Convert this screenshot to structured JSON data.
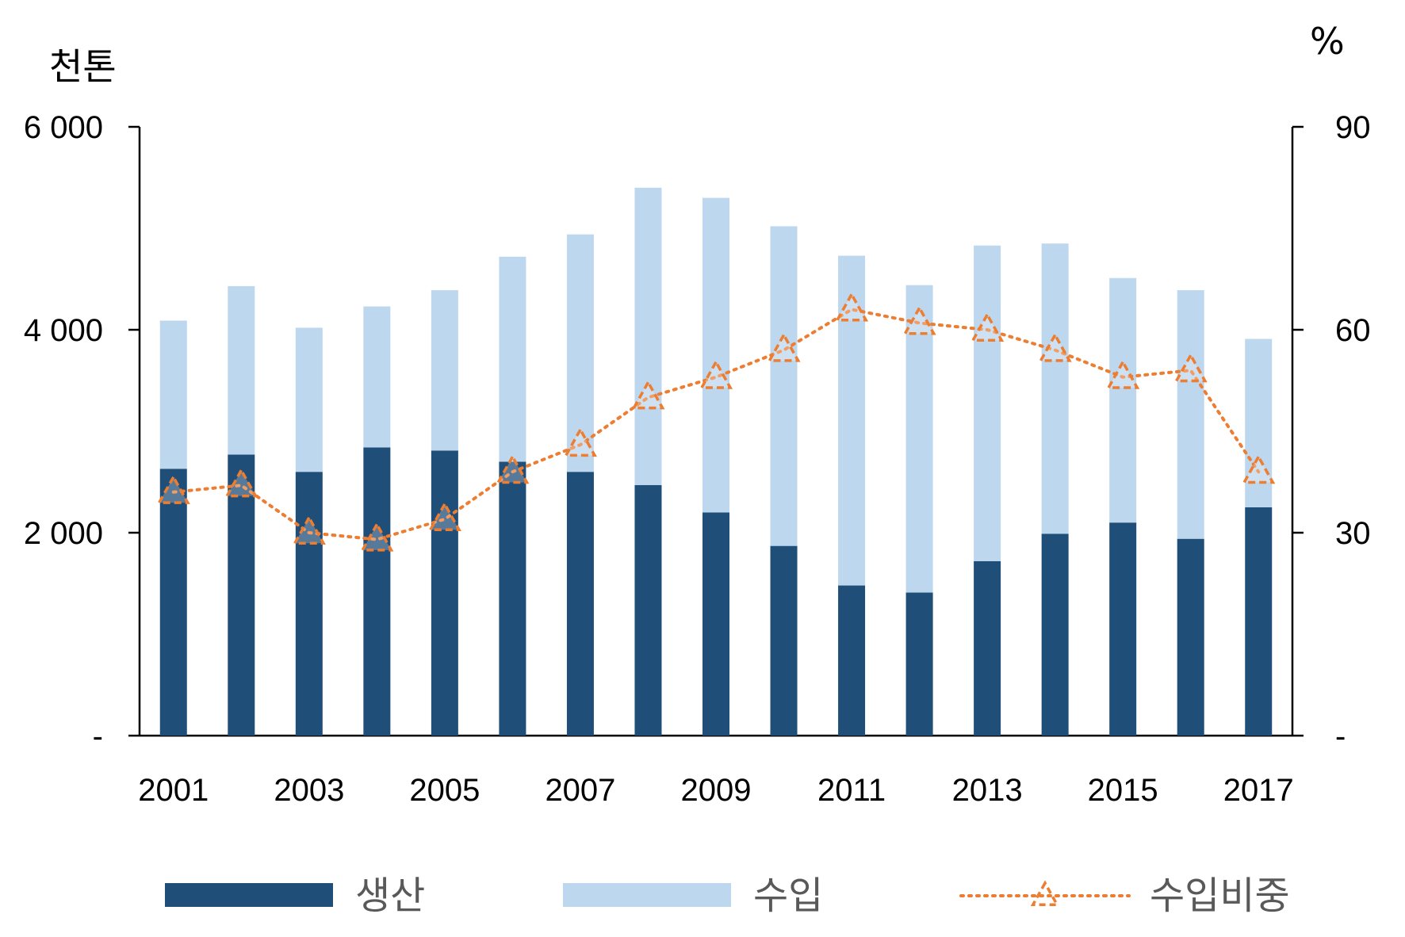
{
  "chart_data": {
    "type": "bar",
    "stacked": true,
    "categories": [
      "2001",
      "2002",
      "2003",
      "2004",
      "2005",
      "2006",
      "2007",
      "2008",
      "2009",
      "2010",
      "2011",
      "2012",
      "2013",
      "2014",
      "2015",
      "2016",
      "2017"
    ],
    "x_tick_labels": [
      "2001",
      "2003",
      "2005",
      "2007",
      "2009",
      "2011",
      "2013",
      "2015",
      "2017"
    ],
    "left_axis": {
      "unit": "천톤",
      "ylim": [
        0,
        6000
      ],
      "ticks": [
        0,
        2000,
        4000,
        6000
      ],
      "tick_labels": [
        "-",
        "2 000",
        "4 000",
        "6 000"
      ]
    },
    "right_axis": {
      "unit": "%",
      "ylim": [
        0,
        90
      ],
      "ticks": [
        0,
        30,
        60,
        90
      ],
      "tick_labels": [
        "-",
        "30",
        "60",
        "90"
      ]
    },
    "series": [
      {
        "name": "생산",
        "kind": "bar",
        "axis": "left",
        "color": "#1f4e79",
        "values": [
          2630,
          2770,
          2600,
          2840,
          2810,
          2700,
          2600,
          2470,
          2200,
          1870,
          1480,
          1410,
          1720,
          1990,
          2100,
          1940,
          2250
        ]
      },
      {
        "name": "수입",
        "kind": "bar",
        "axis": "left",
        "color": "#bdd7ee",
        "values": [
          1460,
          1660,
          1420,
          1390,
          1580,
          2020,
          2340,
          2930,
          3100,
          3150,
          3250,
          3030,
          3110,
          2860,
          2410,
          2450,
          1660
        ]
      },
      {
        "name": "수입비중",
        "kind": "line",
        "axis": "right",
        "color": "#ed7d31",
        "marker": "triangle-open",
        "line_style": "dotted",
        "values": [
          36,
          37,
          30,
          29,
          32,
          39,
          43,
          50,
          53,
          57,
          63,
          61,
          60,
          57,
          53,
          54,
          39
        ]
      }
    ],
    "legend": {
      "position": "bottom"
    },
    "grid": false
  }
}
